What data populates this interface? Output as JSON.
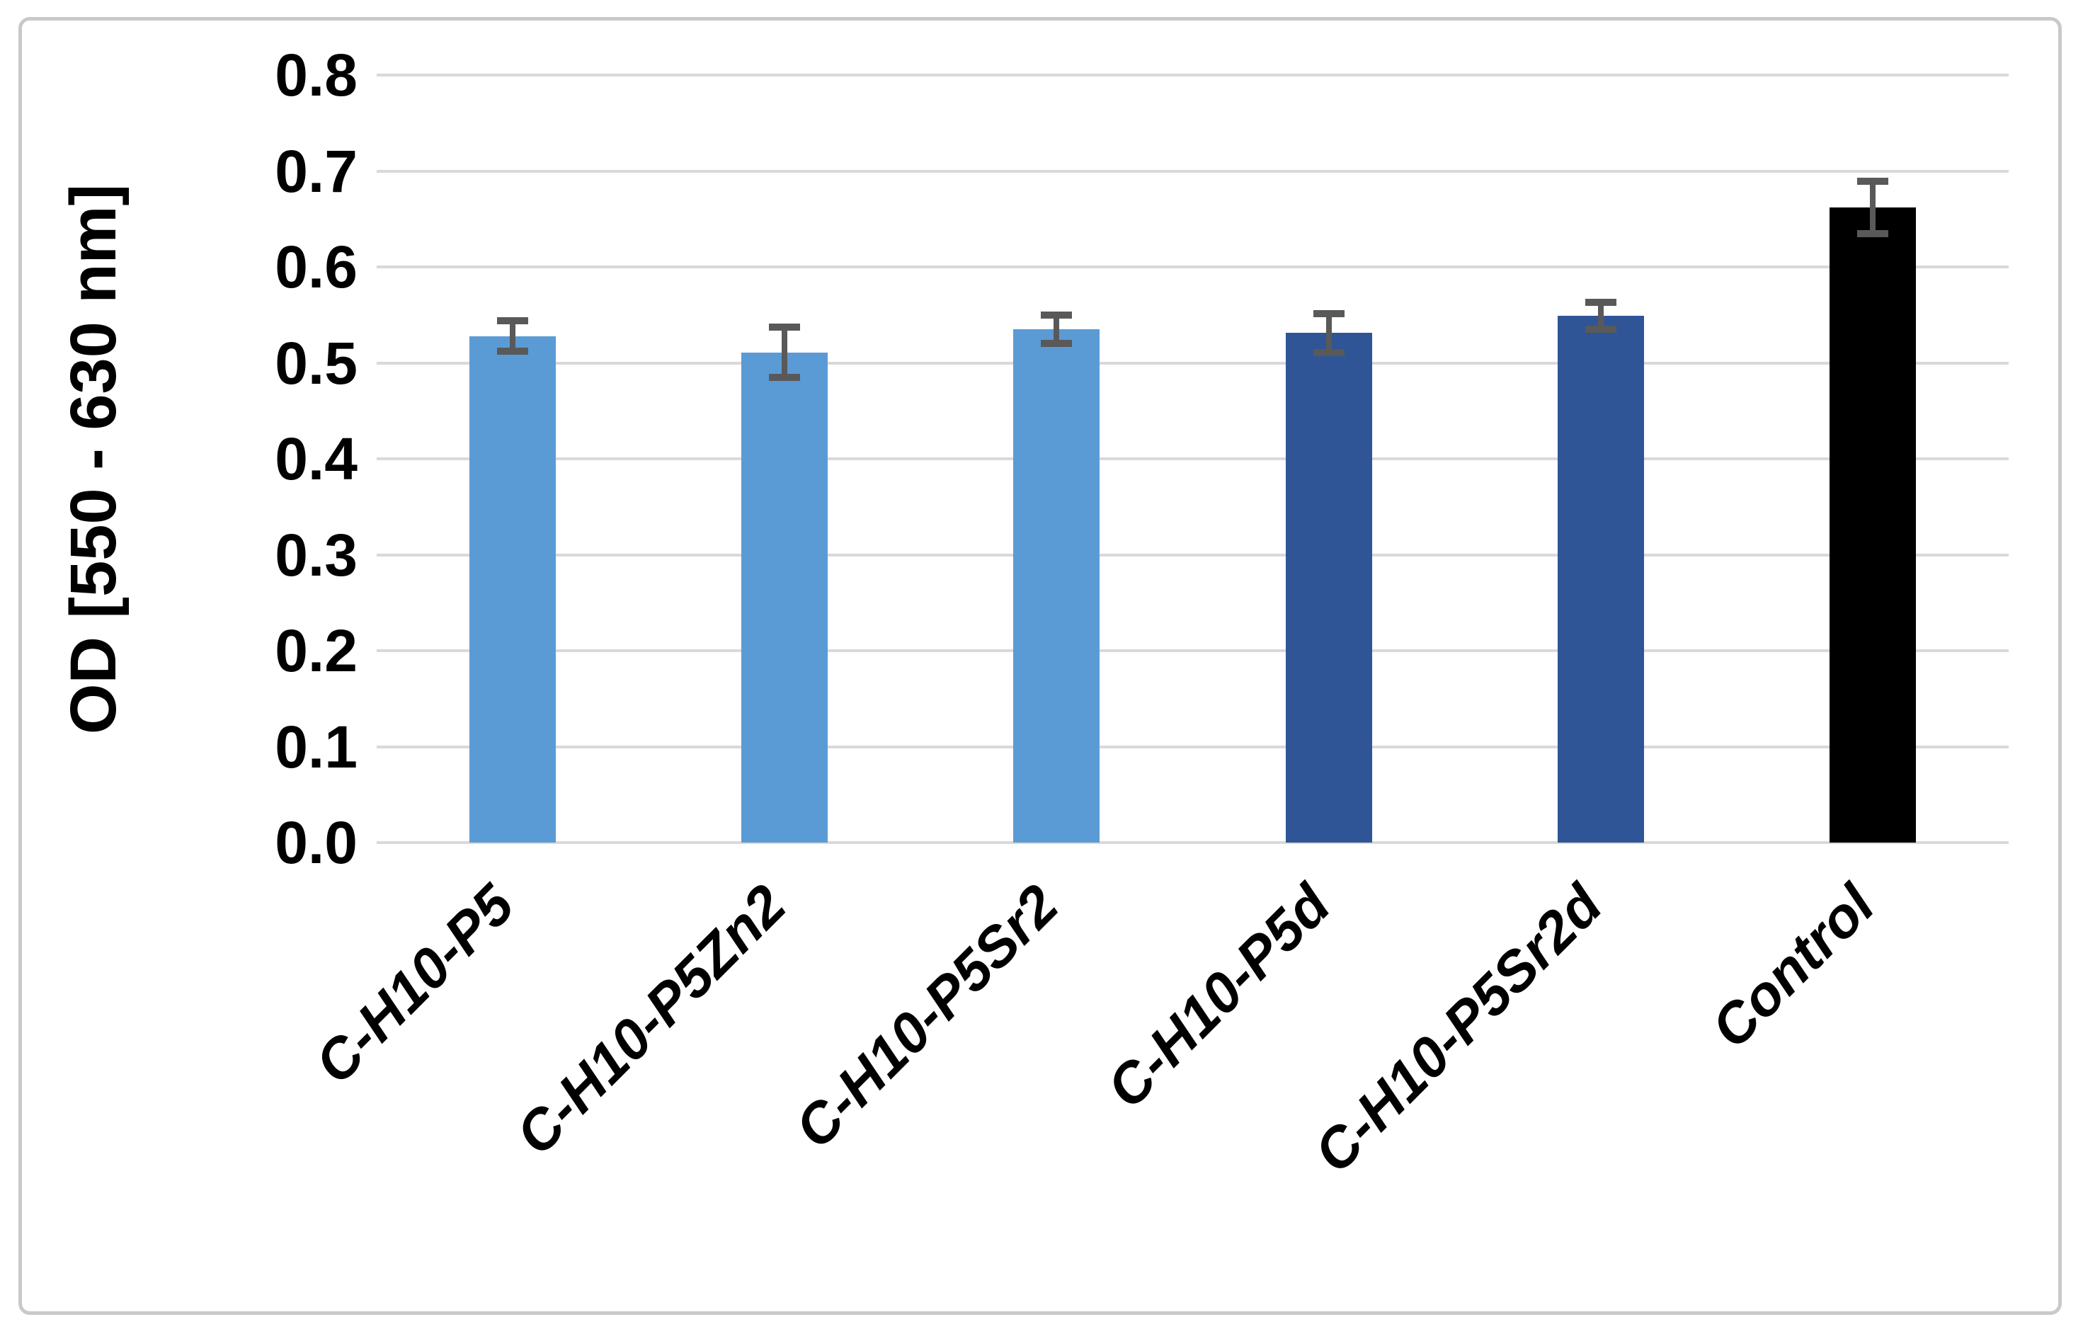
{
  "chart_data": {
    "type": "bar",
    "title": "",
    "xlabel": "",
    "ylabel": "OD [550 - 630 nm]",
    "ylim": [
      0.0,
      0.8
    ],
    "ytick_step": 0.1,
    "ytick_labels": [
      "0.0",
      "0.1",
      "0.2",
      "0.3",
      "0.4",
      "0.5",
      "0.6",
      "0.7",
      "0.8"
    ],
    "grid": true,
    "legend": "none",
    "categories": [
      "C-H10-P5",
      "C-H10-P5Zn2",
      "C-H10-P5Sr2",
      "C-H10-P5d",
      "C-H10-P5Sr2d",
      "Control"
    ],
    "series": [
      {
        "name": "OD",
        "values": [
          0.528,
          0.511,
          0.535,
          0.531,
          0.549,
          0.662
        ],
        "errors": [
          0.016,
          0.026,
          0.015,
          0.02,
          0.014,
          0.027
        ]
      }
    ],
    "bar_colors": [
      "#5B9BD5",
      "#5B9BD5",
      "#5B9BD5",
      "#2F5597",
      "#2F5597",
      "#000000"
    ],
    "colors": {
      "light_blue_bar": "#5B9BD5",
      "dark_blue_bar": "#2F5597",
      "control_bar": "#000000",
      "error_bar": "#595959",
      "gridline": "#D9D9D9",
      "frame_border": "#C9C9C9",
      "text": "#000000",
      "background": "#FFFFFF"
    }
  }
}
